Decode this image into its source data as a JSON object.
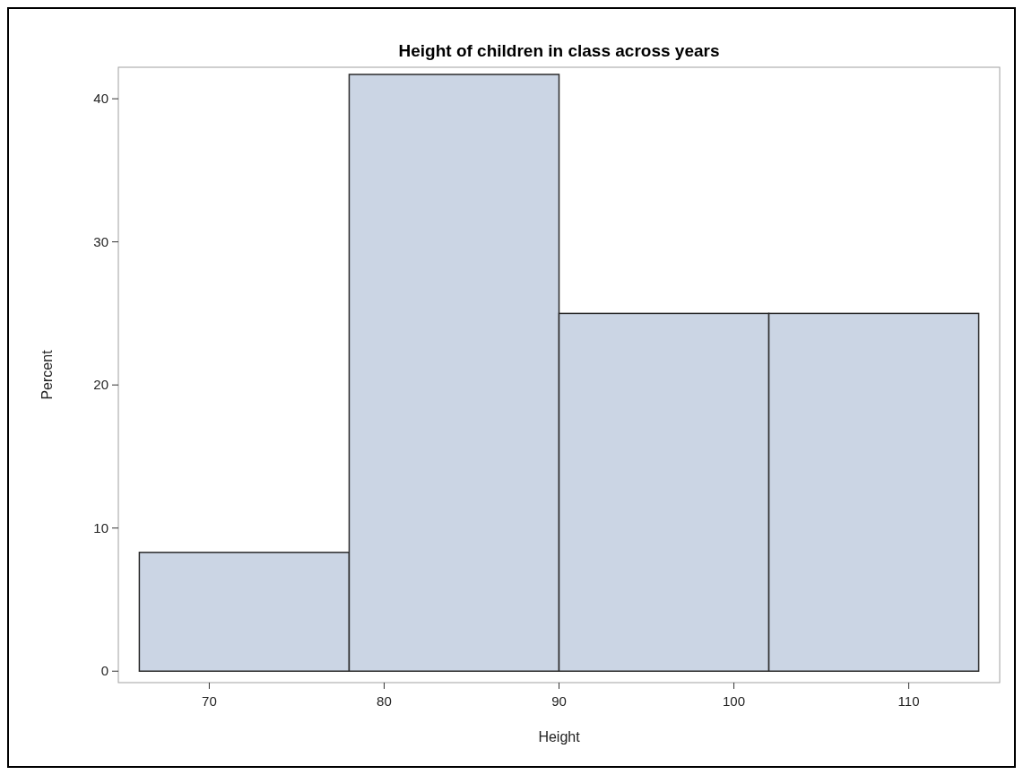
{
  "chart_data": {
    "type": "histogram",
    "title": "Height of children in class across years",
    "xlabel": "Height",
    "ylabel": "Percent",
    "bins": [
      66,
      78,
      90,
      102,
      114
    ],
    "values": [
      8.3,
      41.7,
      25,
      25
    ],
    "color": "#cbd5e4",
    "xlim": [
      64.8,
      115.2
    ],
    "xticks": [
      70,
      80,
      90,
      100,
      110
    ],
    "ylim": [
      -0.8,
      42.2
    ],
    "yticks": [
      0,
      10,
      20,
      30,
      40
    ]
  }
}
